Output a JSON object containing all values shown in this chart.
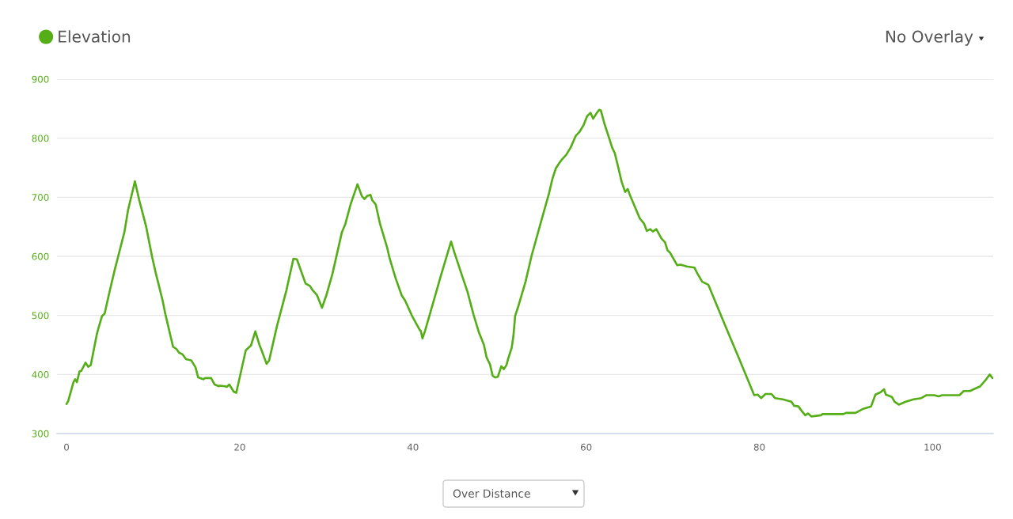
{
  "chart_data": {
    "type": "line",
    "x": [
      0.0,
      0.2,
      0.8,
      1.0,
      1.2,
      1.5,
      1.7,
      2.2,
      2.5,
      2.8,
      3.5,
      3.7,
      4.1,
      4.4,
      5.0,
      5.6,
      5.9,
      6.7,
      7.1,
      7.9,
      8.4,
      9.2,
      9.9,
      10.3,
      11.1,
      11.4,
      12.3,
      12.7,
      13.0,
      13.4,
      13.8,
      14.4,
      14.9,
      15.2,
      15.8,
      16.0,
      16.7,
      17.1,
      17.6,
      17.7,
      18.3,
      18.5,
      18.8,
      19.3,
      19.6,
      20.7,
      21.3,
      21.8,
      22.3,
      22.5,
      23.1,
      23.4,
      24.3,
      25.4,
      26.2,
      26.6,
      27.6,
      28.1,
      28.4,
      28.9,
      29.5,
      30.0,
      30.7,
      31.8,
      32.2,
      32.8,
      33.6,
      34.1,
      34.4,
      34.7,
      35.1,
      35.3,
      35.7,
      36.2,
      37.0,
      37.3,
      38.0,
      38.7,
      39.1,
      39.9,
      40.5,
      40.8,
      40.9,
      41.1,
      41.4,
      42.5,
      43.2,
      44.4,
      44.8,
      45.7,
      46.3,
      47.0,
      47.6,
      48.2,
      48.5,
      48.9,
      49.2,
      49.5,
      49.8,
      50.2,
      50.5,
      50.8,
      51.0,
      51.4,
      51.6,
      51.8,
      52.2,
      53.0,
      53.7,
      54.8,
      55.7,
      56.1,
      56.5,
      56.9,
      57.2,
      57.7,
      58.2,
      58.8,
      59.2,
      59.7,
      60.1,
      60.5,
      60.8,
      61.2,
      61.5,
      61.7,
      62.1,
      62.7,
      63.0,
      63.3,
      63.6,
      64.1,
      64.5,
      64.8,
      65.1,
      66.2,
      66.7,
      67.0,
      67.4,
      67.7,
      68.1,
      68.7,
      69.1,
      69.4,
      69.7,
      70.5,
      70.9,
      71.6,
      72.5,
      72.8,
      73.4,
      74.1,
      76.1,
      77.6,
      79.4,
      79.8,
      80.2,
      80.7,
      81.4,
      81.8,
      82.7,
      83.7,
      84.0,
      84.5,
      84.9,
      85.3,
      85.6,
      86.0,
      87.1,
      87.3,
      89.7,
      90.0,
      91.1,
      92.0,
      92.9,
      93.4,
      94.0,
      94.4,
      94.6,
      95.3,
      95.6,
      96.1,
      96.9,
      97.8,
      98.7,
      99.3,
      100.2,
      100.7,
      101.1,
      103.1,
      103.6,
      104.3,
      105.5,
      106.2,
      106.6,
      106.9
    ],
    "series": [
      {
        "name": "Elevation",
        "color": "#55ad17",
        "values": [
          350,
          355,
          387,
          392,
          387,
          405,
          406,
          420,
          413,
          416,
          468,
          479,
          499,
          503,
          542,
          579,
          596,
          642,
          678,
          727,
          695,
          650,
          598,
          572,
          525,
          503,
          447,
          443,
          437,
          434,
          426,
          424,
          412,
          395,
          392,
          394,
          394,
          383,
          380,
          381,
          380,
          379,
          383,
          371,
          369,
          441,
          449,
          473,
          449,
          442,
          418,
          424,
          482,
          543,
          596,
          595,
          554,
          550,
          543,
          535,
          513,
          534,
          570,
          641,
          655,
          688,
          722,
          702,
          697,
          702,
          704,
          695,
          688,
          655,
          616,
          597,
          563,
          534,
          525,
          499,
          483,
          475,
          474,
          461,
          474,
          530,
          566,
          625,
          606,
          566,
          540,
          501,
          472,
          450,
          429,
          417,
          398,
          395,
          396,
          414,
          409,
          416,
          427,
          445,
          465,
          499,
          517,
          557,
          601,
          659,
          706,
          731,
          749,
          758,
          764,
          772,
          784,
          804,
          810,
          822,
          837,
          843,
          833,
          842,
          848,
          847,
          825,
          798,
          784,
          775,
          757,
          726,
          709,
          714,
          702,
          664,
          655,
          643,
          646,
          642,
          646,
          630,
          624,
          610,
          606,
          585,
          586,
          583,
          581,
          572,
          557,
          552,
          481,
          429,
          365,
          366,
          360,
          367,
          367,
          360,
          358,
          354,
          347,
          346,
          338,
          331,
          334,
          329,
          331,
          333,
          333,
          335,
          335,
          342,
          346,
          366,
          370,
          375,
          366,
          362,
          354,
          349,
          354,
          358,
          360,
          365,
          365,
          363,
          365,
          365,
          372,
          372,
          380,
          392,
          400,
          394
        ]
      }
    ],
    "xlim": [
      -1.1,
      107.0
    ],
    "xticks": [
      0,
      20,
      40,
      60,
      80,
      100
    ],
    "ylim": [
      300,
      900
    ],
    "yticks": [
      300,
      400,
      500,
      600,
      700,
      800,
      900
    ],
    "grid": "y",
    "legend": "top left",
    "annotations": [
      "No Overlay",
      "Over Distance"
    ]
  }
}
